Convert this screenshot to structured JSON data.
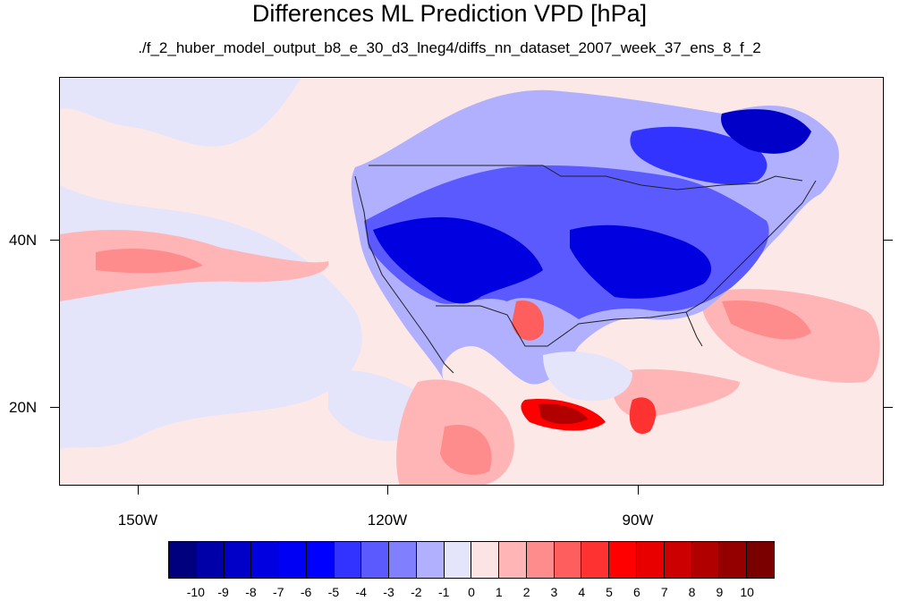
{
  "title": "Differences ML Prediction VPD [hPa]",
  "subtitle": "./f_2_huber_model_output_b8_e_30_d3_lneg4/diffs_nn_dataset_2007_week_37_ens_8_f_2",
  "lat_labels": [
    "40N",
    "20N"
  ],
  "lon_labels": [
    "150W",
    "120W",
    "90W"
  ],
  "colorbar": {
    "colors": [
      "#00007f",
      "#0000a8",
      "#0000c8",
      "#0000e0",
      "#0000f5",
      "#0000ff",
      "#3333ff",
      "#5a5aff",
      "#8080ff",
      "#b0b0ff",
      "#e4e4fb",
      "#fde4e4",
      "#ffb5b5",
      "#ff8c8c",
      "#ff5e5e",
      "#ff3232",
      "#ff0000",
      "#e80000",
      "#cc0000",
      "#b00000",
      "#940000",
      "#7a0000"
    ],
    "labels": [
      "-10",
      "-9",
      "-8",
      "-7",
      "-6",
      "-5",
      "-4",
      "-3",
      "-2",
      "-1",
      "0",
      "1",
      "2",
      "3",
      "4",
      "5",
      "6",
      "7",
      "8",
      "9",
      "10"
    ]
  }
}
